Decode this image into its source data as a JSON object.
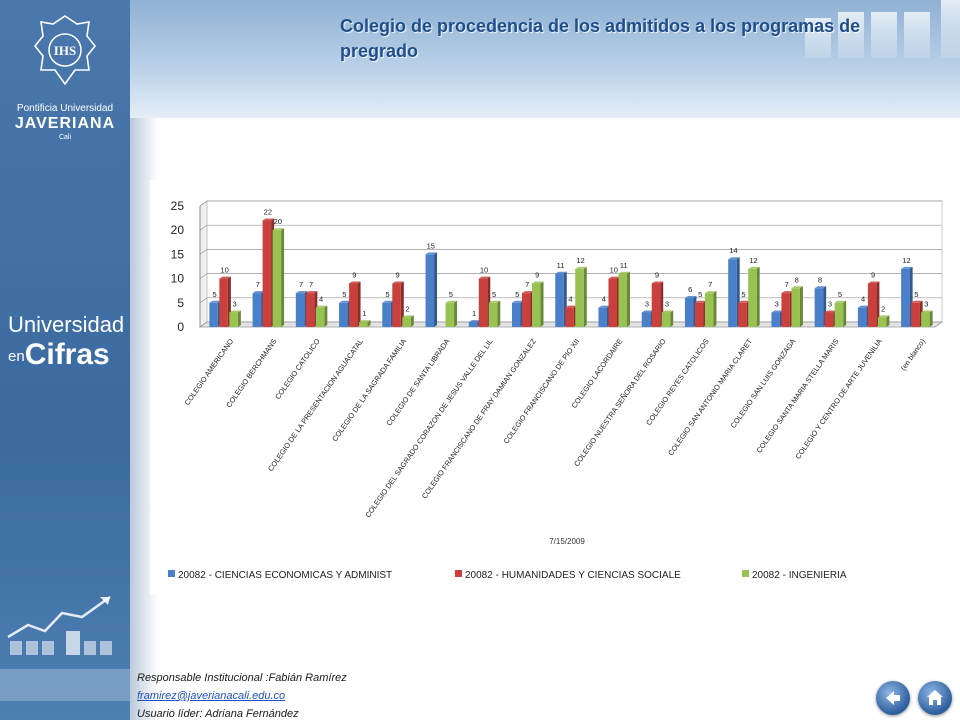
{
  "page": {
    "title": "Colegio  de procedencia de  los  admitidos a los programas de pregrado"
  },
  "sidebar": {
    "logo": {
      "line1": "Pontificia Universidad",
      "line2": "JAVERIANA",
      "line3": "Cali",
      "emblem": "IHS"
    },
    "section": {
      "line1": "Universidad",
      "line2": "en",
      "line3": "Cifras"
    }
  },
  "footer": {
    "responsible": "Responsable  Institucional :Fabián Ramírez",
    "email": "framirez@javerianacali.edu.co",
    "leader": "Usuario líder: Adriana Fernández"
  },
  "nav": {
    "back_icon": "back-arrow-icon",
    "home_icon": "home-icon"
  },
  "colors": {
    "series": [
      "#4a7fc9",
      "#c9403c",
      "#98c251"
    ],
    "title": "#1f4e8a",
    "sidebar": "#4a78ad"
  },
  "chart_data": {
    "type": "bar",
    "date_label": "7/15/2009",
    "ylim": [
      0,
      25
    ],
    "y_ticks": [
      "0",
      "5",
      "10",
      "15",
      "20",
      "25"
    ],
    "grid": true,
    "legend_position": "bottom",
    "categories": [
      "COLEGIO AMERICANO",
      "COLEGIO BERCHMANS",
      "COLEGIO CATOLICO",
      "COLEGIO DE LA PRESENTACION AGUACATAL",
      "COLEGIO DE LA SAGRADA FAMILIA",
      "COLEGIO DE SANTA LIBRADA",
      "COLEGIO DEL SAGRADO CORAZON DE JESUS VALLE DEL LIL",
      "COLEGIO FRANCISCANO DE FRAY DAMIAN GONZALEZ",
      "COLEGIO FRANCISCANO DE PIO XII",
      "COLEGIO LACORDAIRE",
      "COLEGIO NUESTRA SEÑORA DEL ROSARIO",
      "COLEGIO REYES CATOLICOS",
      "COLEGIO SAN ANTONIO MARIA CLARET",
      "COLEGIO SAN LUIS GONZAGA",
      "COLEGIO SANTA MARIA STELLA MARIS",
      "COLEGIO Y CENTRO DE ARTE JUVENILIA",
      "(en blanco)"
    ],
    "series": [
      {
        "name": "20082 - CIENCIAS ECONOMICAS Y ADMINIST",
        "values": [
          5,
          7,
          7,
          5,
          5,
          15,
          1,
          5,
          11,
          4,
          3,
          6,
          14,
          3,
          8,
          4,
          12
        ],
        "labels": [
          "5",
          "7",
          "7",
          "5",
          "5",
          "15",
          "1",
          "5",
          "11",
          "4",
          "3",
          "6",
          "14",
          "3",
          "8",
          "4",
          "12"
        ]
      },
      {
        "name": "20082 - HUMANIDADES Y CIENCIAS SOCIALE",
        "values": [
          10,
          22,
          7,
          9,
          9,
          0,
          10,
          7,
          4,
          10,
          9,
          5,
          5,
          7,
          3,
          9,
          5
        ],
        "labels": [
          "10",
          "22",
          "7",
          "9",
          "9",
          "",
          "10",
          "7",
          "4",
          "10",
          "9",
          "5",
          "5",
          "7",
          "3",
          "9",
          "5"
        ]
      },
      {
        "name": "20082 - INGENIERIA",
        "values": [
          3,
          20,
          4,
          1,
          2,
          5,
          5,
          9,
          12,
          11,
          3,
          7,
          12,
          8,
          5,
          2,
          3
        ],
        "labels": [
          "3",
          "20",
          "4",
          "1",
          "2",
          "5",
          "5",
          "9",
          "12",
          "11",
          "3",
          "7",
          "12",
          "8",
          "5",
          "2",
          "3"
        ]
      }
    ]
  }
}
